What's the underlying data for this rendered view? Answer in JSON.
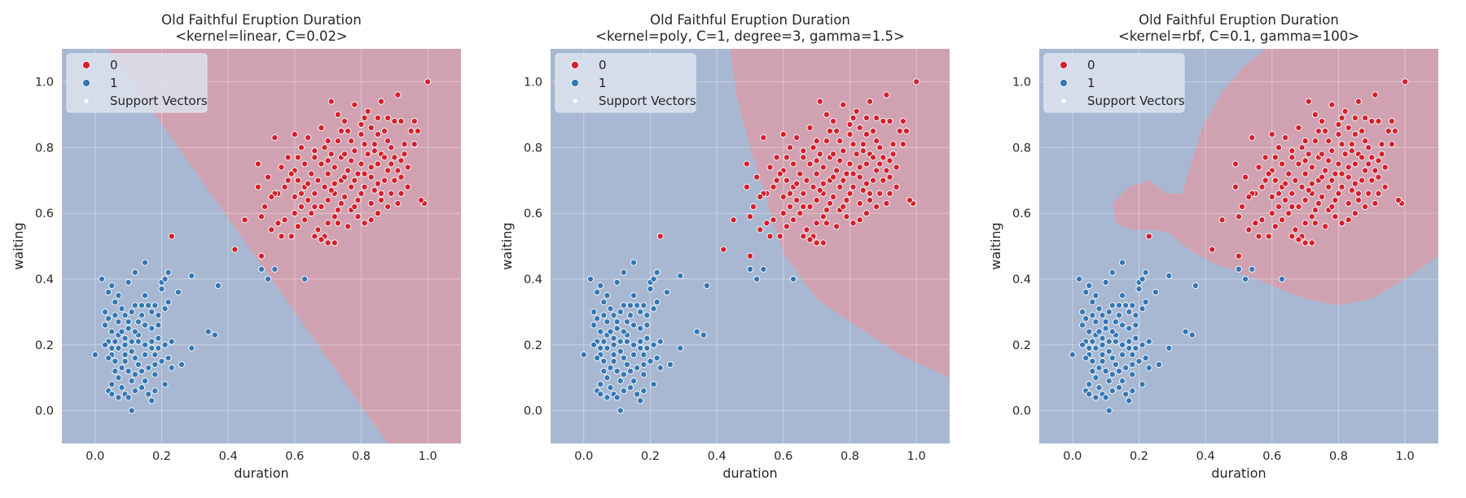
{
  "colors": {
    "region_0": "#d0a2b1",
    "region_1": "#a8b8d2",
    "class_0": "#d4202c",
    "class_1": "#3477b5",
    "legend_bg": "#dde2ee",
    "figure_bg": "#ffffff"
  },
  "legend": {
    "entries": [
      {
        "label": "0",
        "color": "#d4202c"
      },
      {
        "label": "1",
        "color": "#3477b5"
      },
      {
        "label": "Support Vectors",
        "color": "#ffffff"
      }
    ]
  },
  "chart_data": [
    {
      "type": "scatter",
      "title": "Old Faithful Eruption Duration",
      "subtitle": "<kernel=linear, C=0.02>",
      "xlabel": "duration",
      "ylabel": "waiting",
      "xlim": [
        -0.1,
        1.1
      ],
      "ylim": [
        -0.1,
        1.1
      ],
      "xticks": [
        "0.0",
        "0.2",
        "0.4",
        "0.6",
        "0.8",
        "1.0"
      ],
      "yticks": [
        "0.0",
        "0.2",
        "0.4",
        "0.6",
        "0.8",
        "1.0"
      ],
      "grid": true,
      "legend_position": "top-left",
      "decision_boundary": {
        "kernel": "linear",
        "points": [
          [
            0.04,
            1.1
          ],
          [
            0.53,
            0.4
          ],
          [
            0.88,
            -0.1
          ]
        ]
      }
    },
    {
      "type": "scatter",
      "title": "Old Faithful Eruption Duration",
      "subtitle": "<kernel=poly, C=1, degree=3, gamma=1.5>",
      "xlabel": "duration",
      "ylabel": "waiting",
      "xlim": [
        -0.1,
        1.1
      ],
      "ylim": [
        -0.1,
        1.1
      ],
      "xticks": [
        "0.0",
        "0.2",
        "0.4",
        "0.6",
        "0.8",
        "1.0"
      ],
      "yticks": [
        "0.0",
        "0.2",
        "0.4",
        "0.6",
        "0.8",
        "1.0"
      ],
      "grid": true,
      "legend_position": "top-left",
      "decision_boundary": {
        "kernel": "poly",
        "points": [
          [
            0.44,
            1.1
          ],
          [
            0.46,
            0.95
          ],
          [
            0.5,
            0.8
          ],
          [
            0.55,
            0.64
          ],
          [
            0.6,
            0.48
          ],
          [
            0.7,
            0.34
          ],
          [
            0.8,
            0.27
          ],
          [
            0.95,
            0.17
          ],
          [
            1.1,
            0.1
          ]
        ]
      }
    },
    {
      "type": "scatter",
      "title": "Old Faithful Eruption Duration",
      "subtitle": "<kernel=rbf, C=0.1, gamma=100>",
      "xlabel": "duration",
      "ylabel": "waiting",
      "xlim": [
        -0.1,
        1.1
      ],
      "ylim": [
        -0.1,
        1.1
      ],
      "xticks": [
        "0.0",
        "0.2",
        "0.4",
        "0.6",
        "0.8",
        "1.0"
      ],
      "yticks": [
        "0.0",
        "0.2",
        "0.4",
        "0.6",
        "0.8",
        "1.0"
      ],
      "grid": true,
      "legend_position": "top-left",
      "decision_boundary": {
        "kernel": "rbf",
        "points": [
          [
            1.1,
            0.47
          ],
          [
            1.0,
            0.4
          ],
          [
            0.9,
            0.34
          ],
          [
            0.8,
            0.32
          ],
          [
            0.7,
            0.34
          ],
          [
            0.6,
            0.38
          ],
          [
            0.5,
            0.42
          ],
          [
            0.42,
            0.45
          ],
          [
            0.35,
            0.49
          ],
          [
            0.29,
            0.54
          ],
          [
            0.24,
            0.55
          ],
          [
            0.18,
            0.55
          ],
          [
            0.13,
            0.57
          ],
          [
            0.12,
            0.63
          ],
          [
            0.17,
            0.68
          ],
          [
            0.23,
            0.7
          ],
          [
            0.28,
            0.66
          ],
          [
            0.33,
            0.66
          ],
          [
            0.36,
            0.76
          ],
          [
            0.39,
            0.86
          ],
          [
            0.45,
            0.97
          ],
          [
            0.52,
            1.05
          ],
          [
            0.58,
            1.1
          ],
          [
            1.1,
            1.1
          ]
        ]
      }
    }
  ],
  "points": {
    "class_0": [
      [
        1.0,
        1.0
      ],
      [
        0.91,
        0.96
      ],
      [
        0.86,
        0.94
      ],
      [
        0.78,
        0.93
      ],
      [
        0.71,
        0.94
      ],
      [
        0.73,
        0.9
      ],
      [
        0.81,
        0.89
      ],
      [
        0.85,
        0.89
      ],
      [
        0.88,
        0.89
      ],
      [
        0.9,
        0.88
      ],
      [
        0.92,
        0.88
      ],
      [
        0.8,
        0.87
      ],
      [
        0.83,
        0.86
      ],
      [
        0.87,
        0.85
      ],
      [
        0.95,
        0.85
      ],
      [
        0.97,
        0.85
      ],
      [
        0.68,
        0.86
      ],
      [
        0.76,
        0.85
      ],
      [
        0.6,
        0.84
      ],
      [
        0.64,
        0.83
      ],
      [
        0.54,
        0.83
      ],
      [
        0.7,
        0.82
      ],
      [
        0.73,
        0.82
      ],
      [
        0.77,
        0.82
      ],
      [
        0.81,
        0.81
      ],
      [
        0.84,
        0.81
      ],
      [
        0.89,
        0.8
      ],
      [
        0.93,
        0.81
      ],
      [
        0.62,
        0.8
      ],
      [
        0.66,
        0.79
      ],
      [
        0.78,
        0.79
      ],
      [
        0.82,
        0.78
      ],
      [
        0.86,
        0.78
      ],
      [
        0.58,
        0.77
      ],
      [
        0.71,
        0.78
      ],
      [
        0.74,
        0.77
      ],
      [
        0.9,
        0.77
      ],
      [
        0.92,
        0.76
      ],
      [
        0.49,
        0.75
      ],
      [
        0.63,
        0.75
      ],
      [
        0.68,
        0.75
      ],
      [
        0.8,
        0.75
      ],
      [
        0.85,
        0.75
      ],
      [
        0.56,
        0.74
      ],
      [
        0.6,
        0.73
      ],
      [
        0.72,
        0.74
      ],
      [
        0.76,
        0.73
      ],
      [
        0.88,
        0.73
      ],
      [
        0.91,
        0.73
      ],
      [
        0.94,
        0.74
      ],
      [
        0.65,
        0.72
      ],
      [
        0.7,
        0.72
      ],
      [
        0.79,
        0.72
      ],
      [
        0.83,
        0.71
      ],
      [
        0.52,
        0.71
      ],
      [
        0.58,
        0.7
      ],
      [
        0.61,
        0.7
      ],
      [
        0.67,
        0.7
      ],
      [
        0.74,
        0.7
      ],
      [
        0.87,
        0.7
      ],
      [
        0.9,
        0.7
      ],
      [
        0.57,
        0.68
      ],
      [
        0.63,
        0.68
      ],
      [
        0.69,
        0.68
      ],
      [
        0.77,
        0.68
      ],
      [
        0.81,
        0.68
      ],
      [
        0.84,
        0.67
      ],
      [
        0.55,
        0.66
      ],
      [
        0.66,
        0.66
      ],
      [
        0.72,
        0.66
      ],
      [
        0.75,
        0.65
      ],
      [
        0.86,
        0.66
      ],
      [
        0.89,
        0.66
      ],
      [
        0.92,
        0.66
      ],
      [
        0.49,
        0.68
      ],
      [
        0.54,
        0.66
      ],
      [
        0.6,
        0.65
      ],
      [
        0.64,
        0.64
      ],
      [
        0.7,
        0.64
      ],
      [
        0.79,
        0.64
      ],
      [
        0.83,
        0.63
      ],
      [
        0.91,
        0.63
      ],
      [
        0.99,
        0.63
      ],
      [
        0.98,
        0.64
      ],
      [
        0.62,
        0.62
      ],
      [
        0.68,
        0.62
      ],
      [
        0.73,
        0.61
      ],
      [
        0.77,
        0.61
      ],
      [
        0.88,
        0.62
      ],
      [
        0.51,
        0.62
      ],
      [
        0.6,
        0.6
      ],
      [
        0.65,
        0.6
      ],
      [
        0.72,
        0.59
      ],
      [
        0.79,
        0.59
      ],
      [
        0.85,
        0.6
      ],
      [
        0.57,
        0.58
      ],
      [
        0.63,
        0.58
      ],
      [
        0.7,
        0.57
      ],
      [
        0.81,
        0.57
      ],
      [
        0.83,
        0.58
      ],
      [
        0.5,
        0.59
      ],
      [
        0.55,
        0.57
      ],
      [
        0.61,
        0.56
      ],
      [
        0.67,
        0.55
      ],
      [
        0.76,
        0.56
      ],
      [
        0.69,
        0.53
      ],
      [
        0.7,
        0.51
      ],
      [
        0.72,
        0.51
      ],
      [
        0.66,
        0.53
      ],
      [
        0.68,
        0.52
      ],
      [
        0.59,
        0.53
      ],
      [
        0.56,
        0.53
      ],
      [
        0.53,
        0.55
      ],
      [
        0.42,
        0.49
      ],
      [
        0.5,
        0.47
      ],
      [
        0.23,
        0.53
      ],
      [
        0.96,
        0.88
      ],
      [
        0.75,
        0.88
      ],
      [
        0.82,
        0.91
      ],
      [
        0.85,
        0.84
      ],
      [
        0.8,
        0.84
      ],
      [
        0.74,
        0.85
      ],
      [
        0.93,
        0.78
      ],
      [
        0.87,
        0.77
      ],
      [
        0.7,
        0.76
      ],
      [
        0.66,
        0.77
      ],
      [
        0.78,
        0.7
      ],
      [
        0.83,
        0.74
      ],
      [
        0.75,
        0.71
      ],
      [
        0.72,
        0.69
      ],
      [
        0.8,
        0.66
      ],
      [
        0.86,
        0.64
      ],
      [
        0.78,
        0.62
      ],
      [
        0.74,
        0.63
      ],
      [
        0.85,
        0.69
      ],
      [
        0.94,
        0.68
      ],
      [
        0.59,
        0.72
      ],
      [
        0.53,
        0.65
      ],
      [
        0.45,
        0.58
      ],
      [
        0.61,
        0.77
      ],
      [
        0.69,
        0.8
      ],
      [
        0.88,
        0.82
      ],
      [
        0.92,
        0.71
      ],
      [
        0.96,
        0.81
      ],
      [
        0.77,
        0.76
      ],
      [
        0.71,
        0.67
      ],
      [
        0.64,
        0.69
      ],
      [
        0.81,
        0.72
      ],
      [
        0.66,
        0.62
      ],
      [
        0.62,
        0.66
      ],
      [
        0.73,
        0.57
      ],
      [
        0.75,
        0.78
      ],
      [
        0.84,
        0.79
      ],
      [
        0.89,
        0.75
      ]
    ],
    "class_1": [
      [
        0.0,
        0.17
      ],
      [
        0.02,
        0.4
      ],
      [
        0.04,
        0.36
      ],
      [
        0.03,
        0.3
      ],
      [
        0.05,
        0.38
      ],
      [
        0.06,
        0.33
      ],
      [
        0.07,
        0.35
      ],
      [
        0.1,
        0.39
      ],
      [
        0.12,
        0.42
      ],
      [
        0.15,
        0.45
      ],
      [
        0.2,
        0.39
      ],
      [
        0.21,
        0.4
      ],
      [
        0.22,
        0.42
      ],
      [
        0.2,
        0.37
      ],
      [
        0.25,
        0.36
      ],
      [
        0.29,
        0.41
      ],
      [
        0.37,
        0.38
      ],
      [
        0.06,
        0.29
      ],
      [
        0.04,
        0.28
      ],
      [
        0.07,
        0.27
      ],
      [
        0.09,
        0.29
      ],
      [
        0.11,
        0.3
      ],
      [
        0.12,
        0.32
      ],
      [
        0.14,
        0.32
      ],
      [
        0.16,
        0.32
      ],
      [
        0.17,
        0.3
      ],
      [
        0.18,
        0.32
      ],
      [
        0.22,
        0.33
      ],
      [
        0.21,
        0.31
      ],
      [
        0.19,
        0.29
      ],
      [
        0.15,
        0.26
      ],
      [
        0.13,
        0.27
      ],
      [
        0.1,
        0.25
      ],
      [
        0.07,
        0.23
      ],
      [
        0.08,
        0.24
      ],
      [
        0.06,
        0.21
      ],
      [
        0.04,
        0.21
      ],
      [
        0.05,
        0.19
      ],
      [
        0.07,
        0.19
      ],
      [
        0.09,
        0.2
      ],
      [
        0.11,
        0.21
      ],
      [
        0.13,
        0.21
      ],
      [
        0.15,
        0.2
      ],
      [
        0.17,
        0.19
      ],
      [
        0.19,
        0.19
      ],
      [
        0.21,
        0.2
      ],
      [
        0.23,
        0.21
      ],
      [
        0.22,
        0.16
      ],
      [
        0.2,
        0.15
      ],
      [
        0.18,
        0.14
      ],
      [
        0.16,
        0.13
      ],
      [
        0.14,
        0.12
      ],
      [
        0.12,
        0.11
      ],
      [
        0.1,
        0.12
      ],
      [
        0.08,
        0.13
      ],
      [
        0.06,
        0.15
      ],
      [
        0.05,
        0.17
      ],
      [
        0.04,
        0.16
      ],
      [
        0.09,
        0.17
      ],
      [
        0.12,
        0.16
      ],
      [
        0.15,
        0.17
      ],
      [
        0.18,
        0.17
      ],
      [
        0.07,
        0.1
      ],
      [
        0.05,
        0.08
      ],
      [
        0.04,
        0.06
      ],
      [
        0.05,
        0.05
      ],
      [
        0.07,
        0.04
      ],
      [
        0.09,
        0.05
      ],
      [
        0.08,
        0.07
      ],
      [
        0.1,
        0.04
      ],
      [
        0.11,
        0.0
      ],
      [
        0.12,
        0.06
      ],
      [
        0.14,
        0.07
      ],
      [
        0.16,
        0.05
      ],
      [
        0.17,
        0.03
      ],
      [
        0.15,
        0.09
      ],
      [
        0.18,
        0.11
      ],
      [
        0.21,
        0.08
      ],
      [
        0.23,
        0.13
      ],
      [
        0.26,
        0.14
      ],
      [
        0.29,
        0.19
      ],
      [
        0.34,
        0.24
      ],
      [
        0.36,
        0.23
      ],
      [
        0.52,
        0.4
      ],
      [
        0.5,
        0.43
      ],
      [
        0.54,
        0.43
      ],
      [
        0.63,
        0.4
      ],
      [
        0.13,
        0.14
      ],
      [
        0.11,
        0.18
      ],
      [
        0.09,
        0.22
      ],
      [
        0.13,
        0.23
      ],
      [
        0.17,
        0.25
      ],
      [
        0.19,
        0.22
      ],
      [
        0.1,
        0.27
      ],
      [
        0.08,
        0.31
      ],
      [
        0.15,
        0.35
      ],
      [
        0.03,
        0.26
      ],
      [
        0.06,
        0.12
      ],
      [
        0.11,
        0.09
      ],
      [
        0.09,
        0.15
      ],
      [
        0.17,
        0.21
      ],
      [
        0.19,
        0.26
      ],
      [
        0.03,
        0.2
      ],
      [
        0.05,
        0.24
      ],
      [
        0.12,
        0.24
      ],
      [
        0.14,
        0.29
      ],
      [
        0.18,
        0.06
      ]
    ]
  }
}
